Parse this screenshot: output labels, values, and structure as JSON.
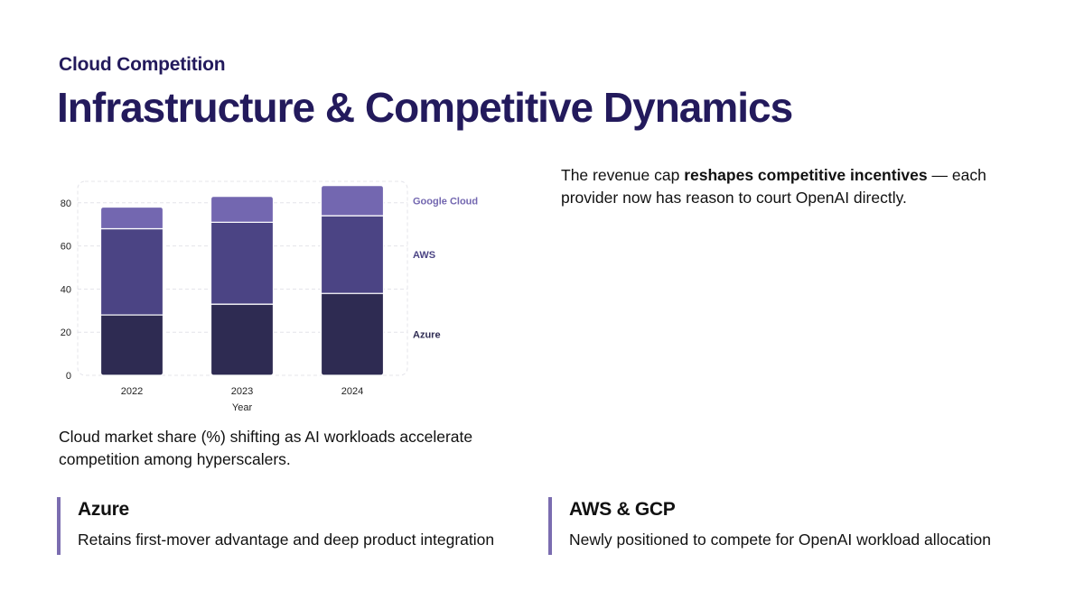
{
  "header": {
    "kicker": "Cloud Competition",
    "title": "Infrastructure & Competitive Dynamics"
  },
  "insight": {
    "pre": "The revenue cap ",
    "bold": "reshapes competitive incentives",
    "post": " — each provider now has reason to court OpenAI directly."
  },
  "caption": "Cloud market share (%) shifting as AI workloads accelerate competition among hyperscalers.",
  "cards": [
    {
      "title": "Azure",
      "text": "Retains first-mover advantage and deep product integration"
    },
    {
      "title": "AWS & GCP",
      "text": "Newly positioned to compete for OpenAI workload allocation"
    }
  ],
  "colors": {
    "azure": "#2e2b52",
    "aws": "#4b4484",
    "google": "#7367b0",
    "accent_bar": "#7b6db0",
    "title": "#231a5c"
  },
  "chart_data": {
    "type": "bar",
    "stacked": true,
    "categories": [
      "2022",
      "2023",
      "2024"
    ],
    "series": [
      {
        "name": "Azure",
        "values": [
          28,
          33,
          38
        ]
      },
      {
        "name": "AWS",
        "values": [
          40,
          38,
          36
        ]
      },
      {
        "name": "Google Cloud",
        "values": [
          10,
          12,
          14
        ]
      }
    ],
    "xlabel": "Year",
    "ylabel": "",
    "ylim": [
      0,
      90
    ],
    "yticks": [
      0,
      20,
      40,
      60,
      80
    ],
    "grid": true,
    "legend": "right"
  }
}
